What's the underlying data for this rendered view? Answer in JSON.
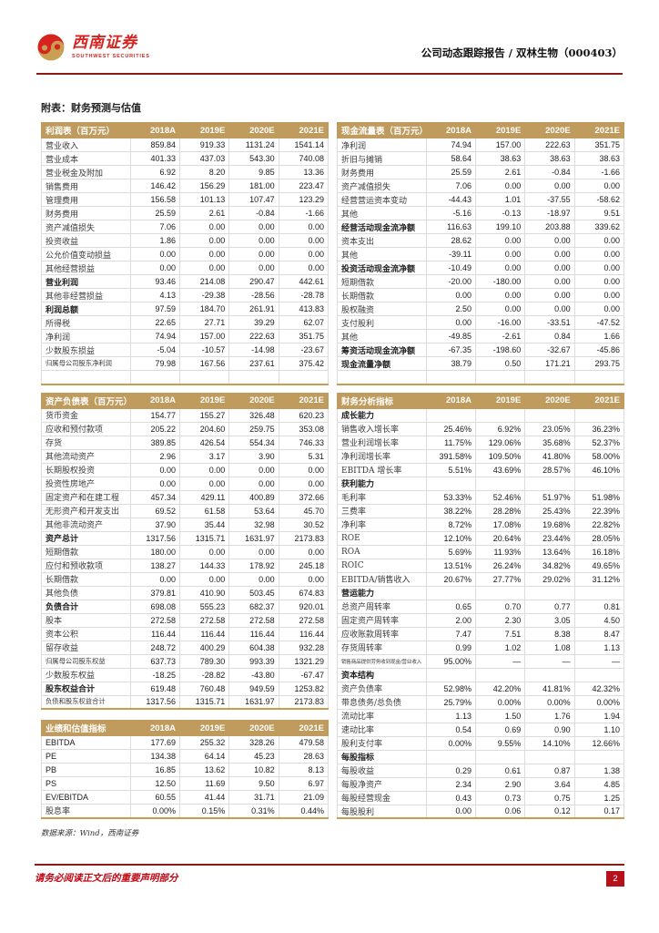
{
  "header": {
    "brand_cn": "西南证券",
    "brand_en": "SOUTHWEST SECURITIES",
    "report_title": "公司动态跟踪报告 / 双林生物（000403）"
  },
  "section_title": "附表：财务预测与估值",
  "columns": [
    "2018A",
    "2019E",
    "2020E",
    "2021E"
  ],
  "colors": {
    "table_header_gold": "#bf9b5e",
    "table_bottom_gold": "#c79d52",
    "rule_dark_red": "#8a1b14",
    "disclaimer_red": "#c00714",
    "page_badge_red": "#b5121b",
    "logo_red": "#d6231f",
    "logo_gold": "#c89f53"
  },
  "tables": {
    "income": {
      "title": "利润表（百万元）",
      "rows": [
        {
          "label": "营业收入",
          "values": [
            "859.84",
            "919.33",
            "1131.24",
            "1541.14"
          ],
          "s": ""
        },
        {
          "label": "营业成本",
          "values": [
            "401.33",
            "437.03",
            "543.30",
            "740.08"
          ],
          "s": ""
        },
        {
          "label": "营业税金及附加",
          "values": [
            "6.92",
            "8.20",
            "9.85",
            "13.36"
          ],
          "s": ""
        },
        {
          "label": "销售费用",
          "values": [
            "146.42",
            "156.29",
            "181.00",
            "223.47"
          ],
          "s": ""
        },
        {
          "label": "管理费用",
          "values": [
            "156.58",
            "101.13",
            "107.47",
            "123.29"
          ],
          "s": ""
        },
        {
          "label": "财务费用",
          "values": [
            "25.59",
            "2.61",
            "-0.84",
            "-1.66"
          ],
          "s": ""
        },
        {
          "label": "资产减值损失",
          "values": [
            "7.06",
            "0.00",
            "0.00",
            "0.00"
          ],
          "s": ""
        },
        {
          "label": "投资收益",
          "values": [
            "1.86",
            "0.00",
            "0.00",
            "0.00"
          ],
          "s": ""
        },
        {
          "label": "公允价值变动损益",
          "values": [
            "0.00",
            "0.00",
            "0.00",
            "0.00"
          ],
          "s": ""
        },
        {
          "label": "其他经营损益",
          "values": [
            "0.00",
            "0.00",
            "0.00",
            "0.00"
          ],
          "s": ""
        },
        {
          "label": "营业利润",
          "values": [
            "93.46",
            "214.08",
            "290.47",
            "442.61"
          ],
          "s": "b"
        },
        {
          "label": "其他非经营损益",
          "values": [
            "4.13",
            "-29.38",
            "-28.56",
            "-28.78"
          ],
          "s": ""
        },
        {
          "label": "利润总额",
          "values": [
            "97.59",
            "184.70",
            "261.91",
            "413.83"
          ],
          "s": "b"
        },
        {
          "label": "所得税",
          "values": [
            "22.65",
            "27.71",
            "39.29",
            "62.07"
          ],
          "s": ""
        },
        {
          "label": "净利润",
          "values": [
            "74.94",
            "157.00",
            "222.63",
            "351.75"
          ],
          "s": ""
        },
        {
          "label": "少数股东损益",
          "values": [
            "-5.04",
            "-10.57",
            "-14.98",
            "-23.67"
          ],
          "s": ""
        },
        {
          "label": "归属母公司股东净利润",
          "values": [
            "79.98",
            "167.56",
            "237.61",
            "375.42"
          ],
          "s": "sm"
        },
        {
          "label": "",
          "values": [
            "",
            "",
            "",
            ""
          ],
          "s": ""
        }
      ]
    },
    "cashflow": {
      "title": "现金流量表（百万元）",
      "rows": [
        {
          "label": "净利润",
          "values": [
            "74.94",
            "157.00",
            "222.63",
            "351.75"
          ],
          "s": ""
        },
        {
          "label": "折旧与摊销",
          "values": [
            "58.64",
            "38.63",
            "38.63",
            "38.63"
          ],
          "s": ""
        },
        {
          "label": "财务费用",
          "values": [
            "25.59",
            "2.61",
            "-0.84",
            "-1.66"
          ],
          "s": ""
        },
        {
          "label": "资产减值损失",
          "values": [
            "7.06",
            "0.00",
            "0.00",
            "0.00"
          ],
          "s": ""
        },
        {
          "label": "经营营运资本变动",
          "values": [
            "-44.43",
            "1.01",
            "-37.55",
            "-58.62"
          ],
          "s": ""
        },
        {
          "label": "其他",
          "values": [
            "-5.16",
            "-0.13",
            "-18.97",
            "9.51"
          ],
          "s": ""
        },
        {
          "label": "经营活动现金流净额",
          "values": [
            "116.63",
            "199.10",
            "203.88",
            "339.62"
          ],
          "s": "b"
        },
        {
          "label": "资本支出",
          "values": [
            "28.62",
            "0.00",
            "0.00",
            "0.00"
          ],
          "s": ""
        },
        {
          "label": "其他",
          "values": [
            "-39.11",
            "0.00",
            "0.00",
            "0.00"
          ],
          "s": ""
        },
        {
          "label": "投资活动现金流净额",
          "values": [
            "-10.49",
            "0.00",
            "0.00",
            "0.00"
          ],
          "s": "b"
        },
        {
          "label": "短期借款",
          "values": [
            "-20.00",
            "-180.00",
            "0.00",
            "0.00"
          ],
          "s": ""
        },
        {
          "label": "长期借款",
          "values": [
            "0.00",
            "0.00",
            "0.00",
            "0.00"
          ],
          "s": ""
        },
        {
          "label": "股权融资",
          "values": [
            "2.50",
            "0.00",
            "0.00",
            "0.00"
          ],
          "s": ""
        },
        {
          "label": "支付股利",
          "values": [
            "0.00",
            "-16.00",
            "-33.51",
            "-47.52"
          ],
          "s": ""
        },
        {
          "label": "其他",
          "values": [
            "-49.85",
            "-2.61",
            "0.84",
            "1.66"
          ],
          "s": ""
        },
        {
          "label": "筹资活动现金流净额",
          "values": [
            "-67.35",
            "-198.60",
            "-32.67",
            "-45.86"
          ],
          "s": "b"
        },
        {
          "label": "现金流量净额",
          "values": [
            "38.79",
            "0.50",
            "171.21",
            "293.75"
          ],
          "s": "b"
        },
        {
          "label": "",
          "values": [
            "",
            "",
            "",
            ""
          ],
          "s": ""
        }
      ]
    },
    "balance": {
      "title": "资产负债表（百万元）",
      "rows": [
        {
          "label": "货币资金",
          "values": [
            "154.77",
            "155.27",
            "326.48",
            "620.23"
          ],
          "s": ""
        },
        {
          "label": "应收和预付款项",
          "values": [
            "205.22",
            "204.60",
            "259.75",
            "353.08"
          ],
          "s": ""
        },
        {
          "label": "存货",
          "values": [
            "389.85",
            "426.54",
            "554.34",
            "746.33"
          ],
          "s": ""
        },
        {
          "label": "其他流动资产",
          "values": [
            "2.96",
            "3.17",
            "3.90",
            "5.31"
          ],
          "s": ""
        },
        {
          "label": "长期股权投资",
          "values": [
            "0.00",
            "0.00",
            "0.00",
            "0.00"
          ],
          "s": ""
        },
        {
          "label": "投资性房地产",
          "values": [
            "0.00",
            "0.00",
            "0.00",
            "0.00"
          ],
          "s": ""
        },
        {
          "label": "固定资产和在建工程",
          "values": [
            "457.34",
            "429.11",
            "400.89",
            "372.66"
          ],
          "s": ""
        },
        {
          "label": "无形资产和开发支出",
          "values": [
            "69.52",
            "61.58",
            "53.64",
            "45.70"
          ],
          "s": ""
        },
        {
          "label": "其他非流动资产",
          "values": [
            "37.90",
            "35.44",
            "32.98",
            "30.52"
          ],
          "s": ""
        },
        {
          "label": "资产总计",
          "values": [
            "1317.56",
            "1315.71",
            "1631.97",
            "2173.83"
          ],
          "s": "b"
        },
        {
          "label": "短期借款",
          "values": [
            "180.00",
            "0.00",
            "0.00",
            "0.00"
          ],
          "s": ""
        },
        {
          "label": "应付和预收款项",
          "values": [
            "138.27",
            "144.33",
            "178.92",
            "245.18"
          ],
          "s": ""
        },
        {
          "label": "长期借款",
          "values": [
            "0.00",
            "0.00",
            "0.00",
            "0.00"
          ],
          "s": ""
        },
        {
          "label": "其他负债",
          "values": [
            "379.81",
            "410.90",
            "503.45",
            "674.83"
          ],
          "s": ""
        },
        {
          "label": "负债合计",
          "values": [
            "698.08",
            "555.23",
            "682.37",
            "920.01"
          ],
          "s": "b"
        },
        {
          "label": "股本",
          "values": [
            "272.58",
            "272.58",
            "272.58",
            "272.58"
          ],
          "s": ""
        },
        {
          "label": "资本公积",
          "values": [
            "116.44",
            "116.44",
            "116.44",
            "116.44"
          ],
          "s": ""
        },
        {
          "label": "留存收益",
          "values": [
            "248.72",
            "400.29",
            "604.38",
            "932.28"
          ],
          "s": ""
        },
        {
          "label": "归属母公司股东权益",
          "values": [
            "637.73",
            "789.30",
            "993.39",
            "1321.29"
          ],
          "s": "sm"
        },
        {
          "label": "少数股东权益",
          "values": [
            "-18.25",
            "-28.82",
            "-43.80",
            "-67.47"
          ],
          "s": ""
        },
        {
          "label": "股东权益合计",
          "values": [
            "619.48",
            "760.48",
            "949.59",
            "1253.82"
          ],
          "s": "b"
        },
        {
          "label": "负债和股东权益合计",
          "values": [
            "1317.56",
            "1315.71",
            "1631.97",
            "2173.83"
          ],
          "s": "sm"
        }
      ]
    },
    "analysis": {
      "title": "财务分析指标",
      "rows": [
        {
          "label": "成长能力",
          "values": [
            "",
            "",
            "",
            ""
          ],
          "s": "sec"
        },
        {
          "label": "销售收入增长率",
          "values": [
            "25.46%",
            "6.92%",
            "23.05%",
            "36.23%"
          ],
          "s": ""
        },
        {
          "label": "营业利润增长率",
          "values": [
            "11.75%",
            "129.06%",
            "35.68%",
            "52.37%"
          ],
          "s": ""
        },
        {
          "label": "净利润增长率",
          "values": [
            "391.58%",
            "109.50%",
            "41.80%",
            "58.00%"
          ],
          "s": ""
        },
        {
          "label": "EBITDA 增长率",
          "values": [
            "5.51%",
            "43.69%",
            "28.57%",
            "46.10%"
          ],
          "s": ""
        },
        {
          "label": "获利能力",
          "values": [
            "",
            "",
            "",
            ""
          ],
          "s": "sec"
        },
        {
          "label": "毛利率",
          "values": [
            "53.33%",
            "52.46%",
            "51.97%",
            "51.98%"
          ],
          "s": ""
        },
        {
          "label": "三费率",
          "values": [
            "38.22%",
            "28.28%",
            "25.43%",
            "22.39%"
          ],
          "s": ""
        },
        {
          "label": "净利率",
          "values": [
            "8.72%",
            "17.08%",
            "19.68%",
            "22.82%"
          ],
          "s": ""
        },
        {
          "label": "ROE",
          "values": [
            "12.10%",
            "20.64%",
            "23.44%",
            "28.05%"
          ],
          "s": ""
        },
        {
          "label": "ROA",
          "values": [
            "5.69%",
            "11.93%",
            "13.64%",
            "16.18%"
          ],
          "s": ""
        },
        {
          "label": "ROIC",
          "values": [
            "13.51%",
            "26.24%",
            "34.82%",
            "49.65%"
          ],
          "s": ""
        },
        {
          "label": "EBITDA/销售收入",
          "values": [
            "20.67%",
            "27.77%",
            "29.02%",
            "31.12%"
          ],
          "s": ""
        },
        {
          "label": "营运能力",
          "values": [
            "",
            "",
            "",
            ""
          ],
          "s": "sec"
        },
        {
          "label": "总资产周转率",
          "values": [
            "0.65",
            "0.70",
            "0.77",
            "0.81"
          ],
          "s": ""
        },
        {
          "label": "固定资产周转率",
          "values": [
            "2.00",
            "2.30",
            "3.05",
            "4.50"
          ],
          "s": ""
        },
        {
          "label": "应收账款周转率",
          "values": [
            "7.47",
            "7.51",
            "8.38",
            "8.47"
          ],
          "s": ""
        },
        {
          "label": "存货周转率",
          "values": [
            "0.99",
            "1.02",
            "1.08",
            "1.13"
          ],
          "s": ""
        },
        {
          "label": "销售商品提供劳务收到现金/营业收入",
          "values": [
            "95.00%",
            "—",
            "—",
            "—"
          ],
          "s": "tiny"
        },
        {
          "label": "资本结构",
          "values": [
            "",
            "",
            "",
            ""
          ],
          "s": "sec"
        },
        {
          "label": "资产负债率",
          "values": [
            "52.98%",
            "42.20%",
            "41.81%",
            "42.32%"
          ],
          "s": ""
        },
        {
          "label": "带息债务/总负债",
          "values": [
            "25.79%",
            "0.00%",
            "0.00%",
            "0.00%"
          ],
          "s": ""
        },
        {
          "label": "流动比率",
          "values": [
            "1.13",
            "1.50",
            "1.76",
            "1.94"
          ],
          "s": ""
        },
        {
          "label": "速动比率",
          "values": [
            "0.54",
            "0.69",
            "0.90",
            "1.10"
          ],
          "s": ""
        },
        {
          "label": "股利支付率",
          "values": [
            "0.00%",
            "9.55%",
            "14.10%",
            "12.66%"
          ],
          "s": ""
        },
        {
          "label": "每股指标",
          "values": [
            "",
            "",
            "",
            ""
          ],
          "s": "sec"
        },
        {
          "label": "每股收益",
          "values": [
            "0.29",
            "0.61",
            "0.87",
            "1.38"
          ],
          "s": ""
        },
        {
          "label": "每股净资产",
          "values": [
            "2.34",
            "2.90",
            "3.64",
            "4.85"
          ],
          "s": ""
        },
        {
          "label": "每股经营现金",
          "values": [
            "0.43",
            "0.73",
            "0.75",
            "1.25"
          ],
          "s": ""
        },
        {
          "label": "每股股利",
          "values": [
            "0.00",
            "0.06",
            "0.12",
            "0.17"
          ],
          "s": ""
        }
      ]
    },
    "valuation": {
      "title": "业绩和估值指标",
      "rows": [
        {
          "label": "EBITDA",
          "values": [
            "177.69",
            "255.32",
            "328.26",
            "479.58"
          ],
          "s": "en"
        },
        {
          "label": "PE",
          "values": [
            "134.38",
            "64.14",
            "45.23",
            "28.63"
          ],
          "s": "en"
        },
        {
          "label": "PB",
          "values": [
            "16.85",
            "13.62",
            "10.82",
            "8.13"
          ],
          "s": "en"
        },
        {
          "label": "PS",
          "values": [
            "12.50",
            "11.69",
            "9.50",
            "6.97"
          ],
          "s": "en"
        },
        {
          "label": "EV/EBITDA",
          "values": [
            "60.55",
            "41.44",
            "31.71",
            "21.09"
          ],
          "s": "en"
        },
        {
          "label": "股息率",
          "values": [
            "0.00%",
            "0.15%",
            "0.31%",
            "0.44%"
          ],
          "s": ""
        }
      ]
    }
  },
  "source_note": "数据来源：Wind，西南证券",
  "footer": {
    "disclaimer": "请务必阅读正文后的重要声明部分",
    "page_number": "2"
  }
}
